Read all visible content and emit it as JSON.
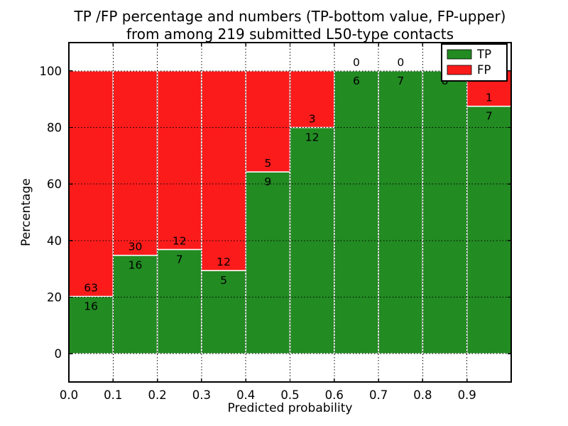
{
  "figure": {
    "title_line1": "TP /FP percentage and numbers (TP-bottom value, FP-upper)",
    "title_line2": "from among 219 submitted L50-type contacts"
  },
  "chart_data": {
    "type": "bar",
    "stacked": true,
    "normalized": "percent",
    "title": "TP /FP percentage and numbers (TP-bottom value, FP-upper) from among 219 submitted L50-type contacts",
    "xlabel": "Predicted probability",
    "ylabel": "Percentage",
    "total_contacts": 219,
    "xlim": [
      0.0,
      1.0
    ],
    "ylim": [
      -10,
      110
    ],
    "grid": true,
    "bin_edges": [
      0.0,
      0.1,
      0.2,
      0.3,
      0.4,
      0.5,
      0.6,
      0.7,
      0.8,
      0.9,
      1.0
    ],
    "categories": [
      "0.0-0.1",
      "0.1-0.2",
      "0.2-0.3",
      "0.3-0.4",
      "0.4-0.5",
      "0.5-0.6",
      "0.6-0.7",
      "0.7-0.8",
      "0.8-0.9",
      "0.9-1.0"
    ],
    "series": [
      {
        "name": "TP",
        "color": "#228b22",
        "counts": [
          16,
          16,
          7,
          5,
          9,
          12,
          6,
          7,
          8,
          7
        ]
      },
      {
        "name": "FP",
        "color": "#fb1b1b",
        "counts": [
          63,
          30,
          12,
          12,
          5,
          3,
          0,
          0,
          0,
          1
        ]
      }
    ],
    "tp_percent": [
      20.3,
      34.8,
      36.8,
      29.4,
      64.3,
      80.0,
      100.0,
      100.0,
      100.0,
      87.5
    ],
    "xticks": [
      0.0,
      0.1,
      0.2,
      0.3,
      0.4,
      0.5,
      0.6,
      0.7,
      0.8,
      0.9
    ],
    "xtick_labels": [
      "0.0",
      "0.1",
      "0.2",
      "0.3",
      "0.4",
      "0.5",
      "0.6",
      "0.7",
      "0.8",
      "0.9"
    ],
    "yticks": [
      0,
      20,
      40,
      60,
      80,
      100
    ],
    "ytick_labels": [
      "0",
      "20",
      "40",
      "60",
      "80",
      "100"
    ],
    "legend": {
      "position": "upper right",
      "entries": [
        {
          "label": "TP",
          "color": "#228b22"
        },
        {
          "label": "FP",
          "color": "#fb1b1b"
        }
      ]
    },
    "bar_edge_color": "#ffffff",
    "grid_color": "#000000",
    "spine_color": "#000000"
  }
}
